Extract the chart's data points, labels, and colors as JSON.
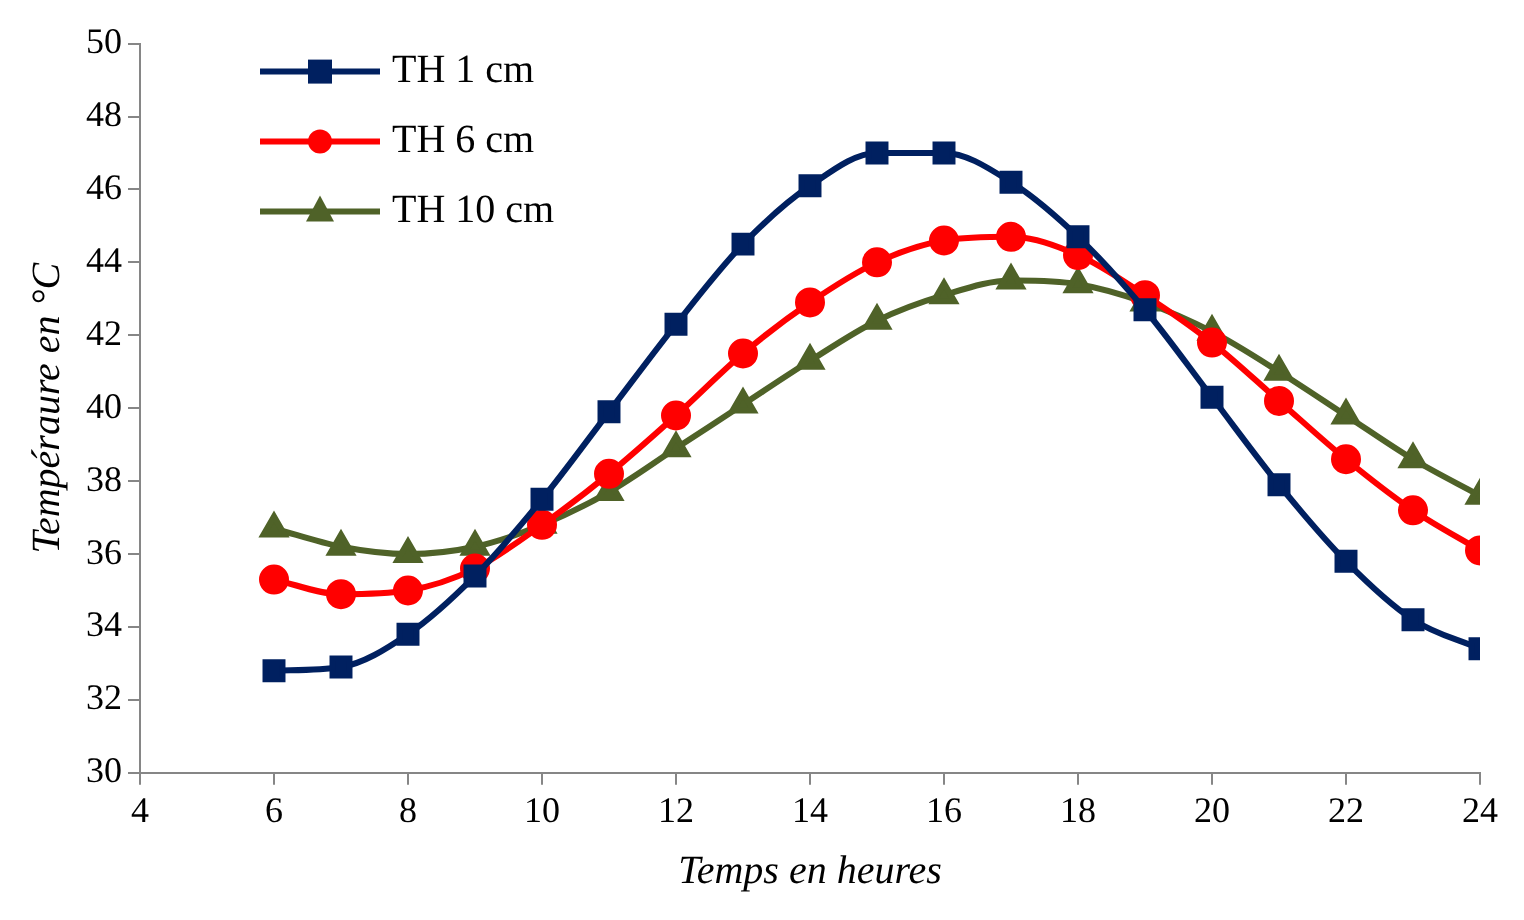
{
  "chart_data": {
    "type": "line",
    "xlabel": "Temps en heures",
    "ylabel": "Tempéraure en °C",
    "x": [
      6,
      7,
      8,
      9,
      10,
      11,
      12,
      13,
      14,
      15,
      16,
      17,
      18,
      19,
      20,
      21,
      22,
      23,
      24
    ],
    "series": [
      {
        "name": "TH 1 cm",
        "color": "#002060",
        "marker": "square",
        "values": [
          32.8,
          32.9,
          33.8,
          35.4,
          37.5,
          39.9,
          42.3,
          44.5,
          46.1,
          47.0,
          47.0,
          46.2,
          44.7,
          42.7,
          40.3,
          37.9,
          35.8,
          34.2,
          33.4
        ]
      },
      {
        "name": "TH 6 cm",
        "color": "#ff0000",
        "marker": "circle",
        "values": [
          35.3,
          34.9,
          35.0,
          35.6,
          36.8,
          38.2,
          39.8,
          41.5,
          42.9,
          44.0,
          44.6,
          44.7,
          44.2,
          43.1,
          41.8,
          40.2,
          38.6,
          37.2,
          36.1
        ]
      },
      {
        "name": "TH 10 cm",
        "color": "#4f6228",
        "marker": "triangle",
        "values": [
          36.7,
          36.2,
          36.0,
          36.2,
          36.8,
          37.7,
          38.9,
          40.1,
          41.3,
          42.4,
          43.1,
          43.5,
          43.4,
          42.9,
          42.1,
          41.0,
          39.8,
          38.6,
          37.6
        ]
      }
    ],
    "xlim": [
      4,
      24
    ],
    "xticks": [
      4,
      6,
      8,
      10,
      12,
      14,
      16,
      18,
      20,
      22,
      24
    ],
    "ylim": [
      30,
      50
    ],
    "yticks": [
      30,
      32,
      34,
      36,
      38,
      40,
      42,
      44,
      46,
      48,
      50
    ],
    "grid": false,
    "legend": "top left",
    "line_style": "solid"
  }
}
